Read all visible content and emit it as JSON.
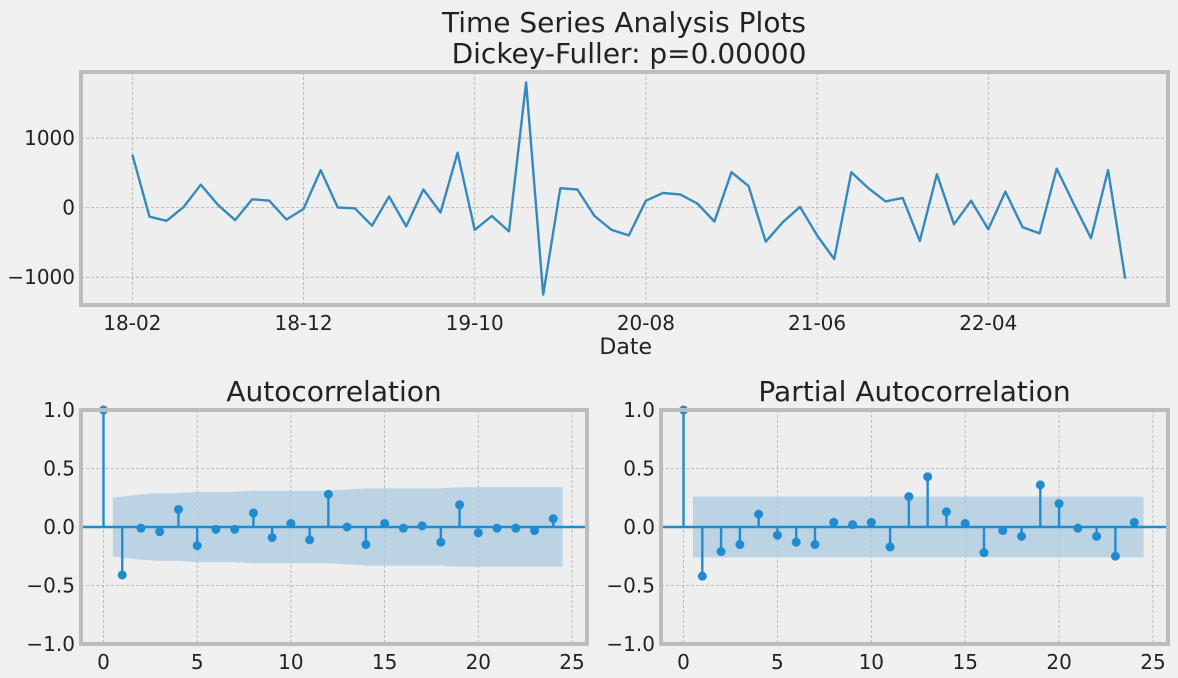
{
  "figure": {
    "title_line1": "Time Series Analysis Plots",
    "title_line2": "Dickey-Fuller: p=0.00000"
  },
  "colors": {
    "line": "#348abd",
    "stem": "#1f8bd0",
    "confband": "#a6c8de",
    "plot_bg": "#eeeeee",
    "page_bg": "#f0f0f0",
    "frame": "#bcbcbc",
    "grid": "#b0b0b0"
  },
  "chart_data": [
    {
      "type": "line",
      "xlabel": "Date",
      "xticks": [
        "18-02",
        "18-12",
        "19-10",
        "20-08",
        "21-06",
        "22-04"
      ],
      "xtick_index": [
        0,
        10,
        20,
        30,
        40,
        50
      ],
      "xlim_index": [
        -3,
        60.5
      ],
      "ylim": [
        -1400,
        1950
      ],
      "yticks": [
        -1000,
        0,
        1000
      ],
      "grid": true,
      "values": [
        760,
        -130,
        -190,
        10,
        330,
        40,
        -180,
        120,
        100,
        -170,
        -20,
        540,
        0,
        -10,
        -260,
        160,
        -270,
        260,
        -70,
        790,
        -320,
        -120,
        -340,
        1800,
        -1250,
        280,
        260,
        -120,
        -320,
        -400,
        100,
        210,
        190,
        60,
        -200,
        510,
        310,
        -490,
        -210,
        10,
        -400,
        -740,
        510,
        280,
        90,
        140,
        -480,
        480,
        -240,
        100,
        -310,
        230,
        -280,
        -370,
        560,
        50,
        -440,
        540,
        -1020
      ]
    },
    {
      "type": "stem",
      "title": "Autocorrelation",
      "xlim": [
        -1.2,
        25.8
      ],
      "ylim": [
        -1,
        1
      ],
      "xticks": [
        0,
        5,
        10,
        15,
        20,
        25
      ],
      "yticks": [
        -1.0,
        -0.5,
        0.0,
        0.5,
        1.0
      ],
      "grid": true,
      "lags": [
        0,
        1,
        2,
        3,
        4,
        5,
        6,
        7,
        8,
        9,
        10,
        11,
        12,
        13,
        14,
        15,
        16,
        17,
        18,
        19,
        20,
        21,
        22,
        23,
        24
      ],
      "values": [
        1.0,
        -0.41,
        -0.01,
        -0.04,
        0.15,
        -0.16,
        -0.02,
        -0.02,
        0.12,
        -0.09,
        0.03,
        -0.11,
        0.28,
        0.0,
        -0.15,
        0.03,
        -0.01,
        0.01,
        -0.13,
        0.19,
        -0.05,
        -0.01,
        -0.01,
        -0.03,
        0.07
      ],
      "confband": {
        "lags": [
          0.5,
          1,
          2,
          3,
          4,
          5,
          6,
          7,
          8,
          9,
          10,
          11,
          12,
          13,
          14,
          15,
          16,
          17,
          18,
          19,
          20,
          21,
          22,
          23,
          24,
          24.5
        ],
        "upper": [
          0.25,
          0.26,
          0.28,
          0.29,
          0.29,
          0.3,
          0.3,
          0.3,
          0.31,
          0.31,
          0.31,
          0.31,
          0.31,
          0.32,
          0.33,
          0.33,
          0.33,
          0.33,
          0.33,
          0.34,
          0.34,
          0.34,
          0.34,
          0.34,
          0.34,
          0.34
        ],
        "lower": [
          -0.25,
          -0.26,
          -0.28,
          -0.29,
          -0.29,
          -0.3,
          -0.3,
          -0.3,
          -0.31,
          -0.31,
          -0.31,
          -0.31,
          -0.31,
          -0.32,
          -0.33,
          -0.33,
          -0.33,
          -0.33,
          -0.33,
          -0.34,
          -0.34,
          -0.34,
          -0.34,
          -0.34,
          -0.34,
          -0.34
        ]
      }
    },
    {
      "type": "stem",
      "title": "Partial Autocorrelation",
      "xlim": [
        -1.2,
        25.8
      ],
      "ylim": [
        -1,
        1
      ],
      "xticks": [
        0,
        5,
        10,
        15,
        20,
        25
      ],
      "yticks": [
        -1.0,
        -0.5,
        0.0,
        0.5,
        1.0
      ],
      "grid": true,
      "lags": [
        0,
        1,
        2,
        3,
        4,
        5,
        6,
        7,
        8,
        9,
        10,
        11,
        12,
        13,
        14,
        15,
        16,
        17,
        18,
        19,
        20,
        21,
        22,
        23,
        24
      ],
      "values": [
        1.0,
        -0.42,
        -0.21,
        -0.15,
        0.11,
        -0.07,
        -0.13,
        -0.15,
        0.04,
        0.02,
        0.04,
        -0.17,
        0.26,
        0.43,
        0.13,
        0.03,
        -0.22,
        -0.03,
        -0.08,
        0.36,
        0.2,
        -0.01,
        -0.08,
        -0.25,
        0.04
      ],
      "confband": {
        "lags": [
          0.5,
          24.5
        ],
        "upper": [
          0.26,
          0.26
        ],
        "lower": [
          -0.26,
          -0.26
        ]
      }
    }
  ]
}
